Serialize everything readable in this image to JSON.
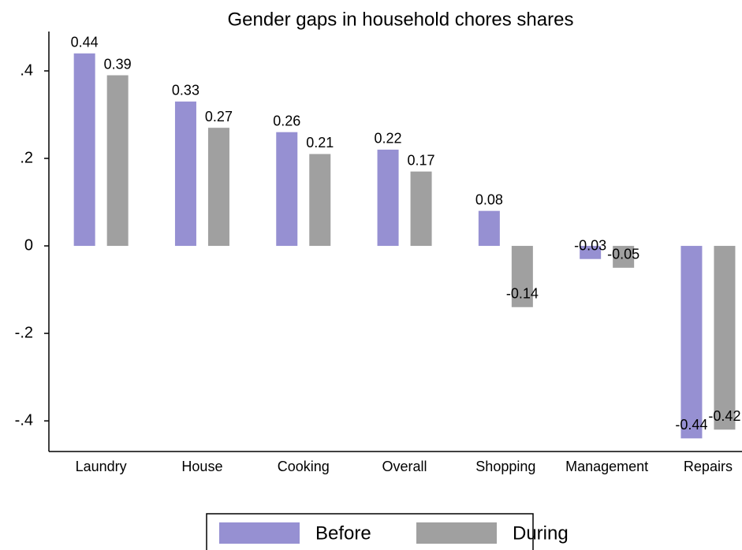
{
  "chart_data": {
    "type": "bar",
    "title": "Gender gaps in household chores shares",
    "categories": [
      "Laundry",
      "House",
      "Cooking",
      "Overall",
      "Shopping",
      "Management",
      "Repairs"
    ],
    "series": [
      {
        "name": "Before",
        "color": "#9690d2",
        "values": [
          0.44,
          0.33,
          0.26,
          0.22,
          0.08,
          -0.03,
          -0.44
        ]
      },
      {
        "name": "During",
        "color": "#a0a0a0",
        "values": [
          0.39,
          0.27,
          0.21,
          0.17,
          -0.14,
          -0.05,
          -0.42
        ]
      }
    ],
    "ylim": [
      -0.47,
      0.49
    ],
    "yticks": [
      {
        "value": 0.4,
        "label": ".4"
      },
      {
        "value": 0.2,
        "label": ".2"
      },
      0,
      {
        "value": -0.2,
        "label": "-.2"
      },
      {
        "value": -0.4,
        "label": "-.4"
      }
    ],
    "grid": false,
    "legend": "bottom"
  }
}
